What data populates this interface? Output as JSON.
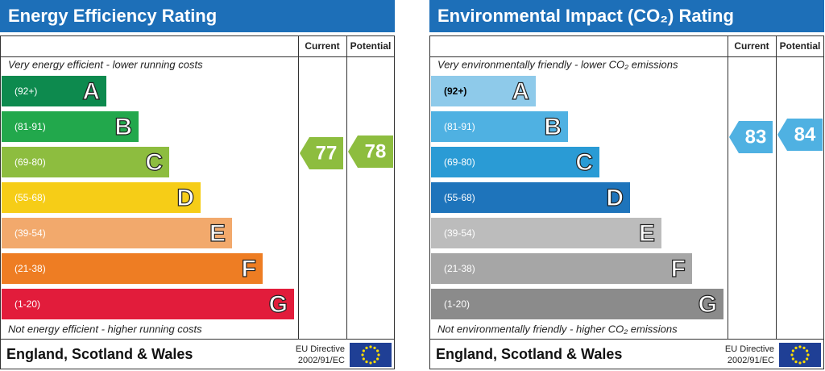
{
  "panels": [
    {
      "title": "Energy Efficiency Rating",
      "col_current": "Current",
      "col_potential": "Potential",
      "top_note": "Very energy efficient - lower running costs",
      "bottom_note": "Not energy efficient - higher running costs",
      "bands": [
        {
          "range": "(92+)",
          "letter": "A",
          "color": "#0d8a4e"
        },
        {
          "range": "(81-91)",
          "letter": "B",
          "color": "#22a84c"
        },
        {
          "range": "(69-80)",
          "letter": "C",
          "color": "#8dbd3f"
        },
        {
          "range": "(55-68)",
          "letter": "D",
          "color": "#f6cd17"
        },
        {
          "range": "(39-54)",
          "letter": "E",
          "color": "#f2a96c"
        },
        {
          "range": "(21-38)",
          "letter": "F",
          "color": "#ee7d23"
        },
        {
          "range": "(1-20)",
          "letter": "G",
          "color": "#e21c3b"
        }
      ],
      "current": {
        "rating": "77",
        "color": "#8dbd3f"
      },
      "potential": {
        "rating": "78",
        "color": "#8dbd3f"
      },
      "footer": "England, Scotland & Wales",
      "directive": [
        "EU Directive",
        "2002/91/EC"
      ]
    },
    {
      "title": "Environmental Impact (CO₂) Rating",
      "col_current": "Current",
      "col_potential": "Potential",
      "top_note": "Very environmentally friendly - lower CO₂ emissions",
      "bottom_note": "Not environmentally friendly - higher CO₂ emissions",
      "bands": [
        {
          "range": "(92+)",
          "letter": "A",
          "color": "#8ecaea"
        },
        {
          "range": "(81-91)",
          "letter": "B",
          "color": "#4fb1e2"
        },
        {
          "range": "(69-80)",
          "letter": "C",
          "color": "#2a9bd5"
        },
        {
          "range": "(55-68)",
          "letter": "D",
          "color": "#1e74bb"
        },
        {
          "range": "(39-54)",
          "letter": "E",
          "color": "#bcbcbc"
        },
        {
          "range": "(21-38)",
          "letter": "F",
          "color": "#a6a6a6"
        },
        {
          "range": "(1-20)",
          "letter": "G",
          "color": "#8b8b8b"
        }
      ],
      "current": {
        "rating": "83",
        "color": "#4fb1e2"
      },
      "potential": {
        "rating": "84",
        "color": "#4fb1e2"
      },
      "footer": "England, Scotland & Wales",
      "directive": [
        "EU Directive",
        "2002/91/EC"
      ]
    }
  ]
}
